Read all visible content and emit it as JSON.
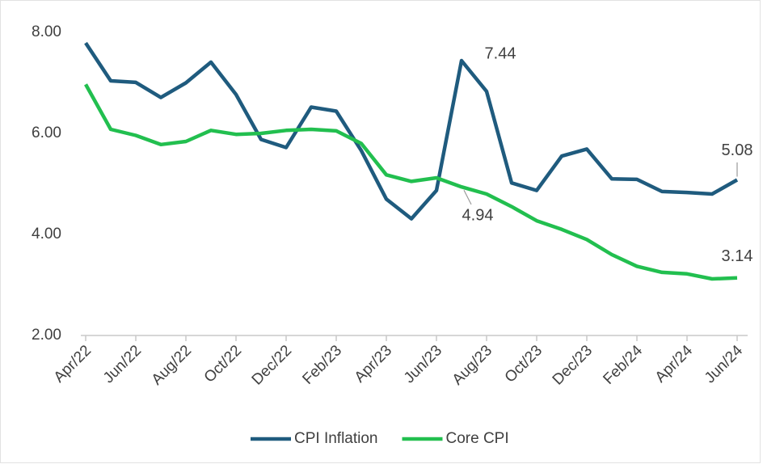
{
  "chart_data": {
    "type": "line",
    "categories": [
      "Apr/22",
      null,
      "Jun/22",
      null,
      "Aug/22",
      null,
      "Oct/22",
      null,
      "Dec/22",
      null,
      "Feb/23",
      null,
      "Apr/23",
      null,
      "Jun/23",
      null,
      "Aug/23",
      null,
      "Oct/23",
      null,
      "Dec/23",
      null,
      "Feb/24",
      null,
      "Apr/24",
      null,
      "Jun/24"
    ],
    "series": [
      {
        "name": "CPI Inflation",
        "color": "#1f5b7e",
        "values": [
          7.79,
          7.04,
          7.01,
          6.71,
          7.0,
          7.41,
          6.77,
          5.88,
          5.72,
          6.52,
          6.44,
          5.66,
          4.7,
          4.31,
          4.87,
          7.44,
          6.83,
          5.02,
          4.87,
          5.55,
          5.69,
          5.1,
          5.09,
          4.85,
          4.83,
          4.8,
          5.08
        ],
        "value_labels": [
          null,
          null,
          null,
          null,
          null,
          null,
          null,
          null,
          null,
          null,
          null,
          null,
          null,
          null,
          null,
          "7.44",
          null,
          null,
          null,
          null,
          null,
          null,
          null,
          null,
          null,
          null,
          "5.08"
        ]
      },
      {
        "name": "Core CPI",
        "color": "#22bf4f",
        "values": [
          6.97,
          6.08,
          5.96,
          5.78,
          5.84,
          6.06,
          5.98,
          6.0,
          6.06,
          6.08,
          6.05,
          5.8,
          5.18,
          5.05,
          5.12,
          4.94,
          4.8,
          4.55,
          4.27,
          4.1,
          3.9,
          3.6,
          3.37,
          3.25,
          3.22,
          3.12,
          3.14
        ],
        "value_labels": [
          null,
          null,
          null,
          null,
          null,
          null,
          null,
          null,
          null,
          null,
          null,
          null,
          null,
          null,
          null,
          "4.94",
          null,
          null,
          null,
          null,
          null,
          null,
          null,
          null,
          null,
          null,
          "3.14"
        ]
      }
    ],
    "ylim": [
      2,
      8
    ],
    "yticks": [
      {
        "value": 2,
        "label": "2.00"
      },
      {
        "value": 4,
        "label": "4.00"
      },
      {
        "value": 6,
        "label": "6.00"
      },
      {
        "value": 8,
        "label": "8.00"
      }
    ],
    "grid": false,
    "legend": "bottom"
  }
}
